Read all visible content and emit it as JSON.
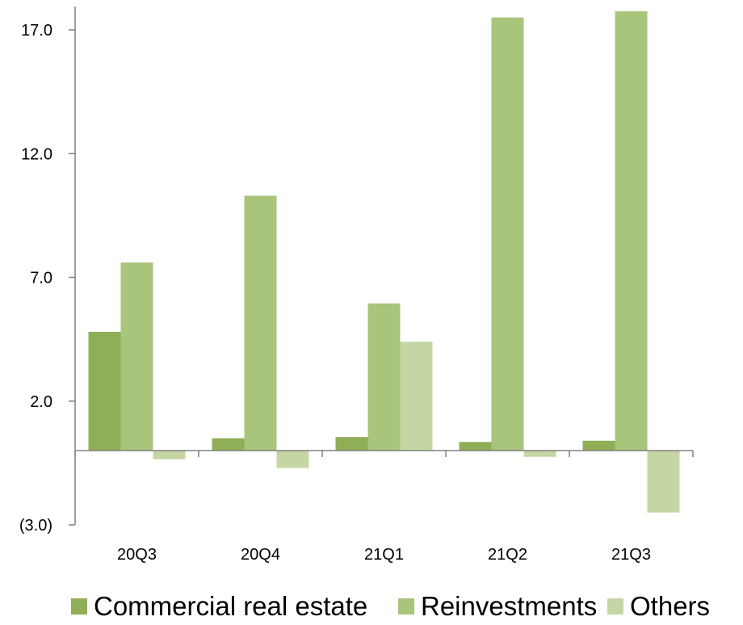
{
  "chart_data": {
    "type": "bar",
    "categories": [
      "20Q3",
      "20Q4",
      "21Q1",
      "21Q2",
      "21Q3"
    ],
    "series": [
      {
        "name": "Commercial real estate",
        "color": "#8fae56",
        "values": [
          4.8,
          0.5,
          0.55,
          0.35,
          0.4
        ]
      },
      {
        "name": "Reinvestments",
        "color": "#a9c47b",
        "values": [
          7.6,
          10.3,
          5.95,
          17.5,
          17.75
        ]
      },
      {
        "name": "Others",
        "color": "#c4d6a3",
        "values": [
          -0.35,
          -0.7,
          4.4,
          -0.25,
          -2.5
        ]
      }
    ],
    "yticks": [
      17.0,
      12.0,
      7.0,
      2.0,
      -3.0
    ],
    "ytick_labels": [
      "17.0",
      "12.0",
      "7.0",
      "2.0",
      "(3.0)"
    ],
    "negative_tick_color": "#ff0000",
    "ylim": [
      -3.0,
      18.0
    ],
    "legend_position": "bottom",
    "grid": false
  }
}
